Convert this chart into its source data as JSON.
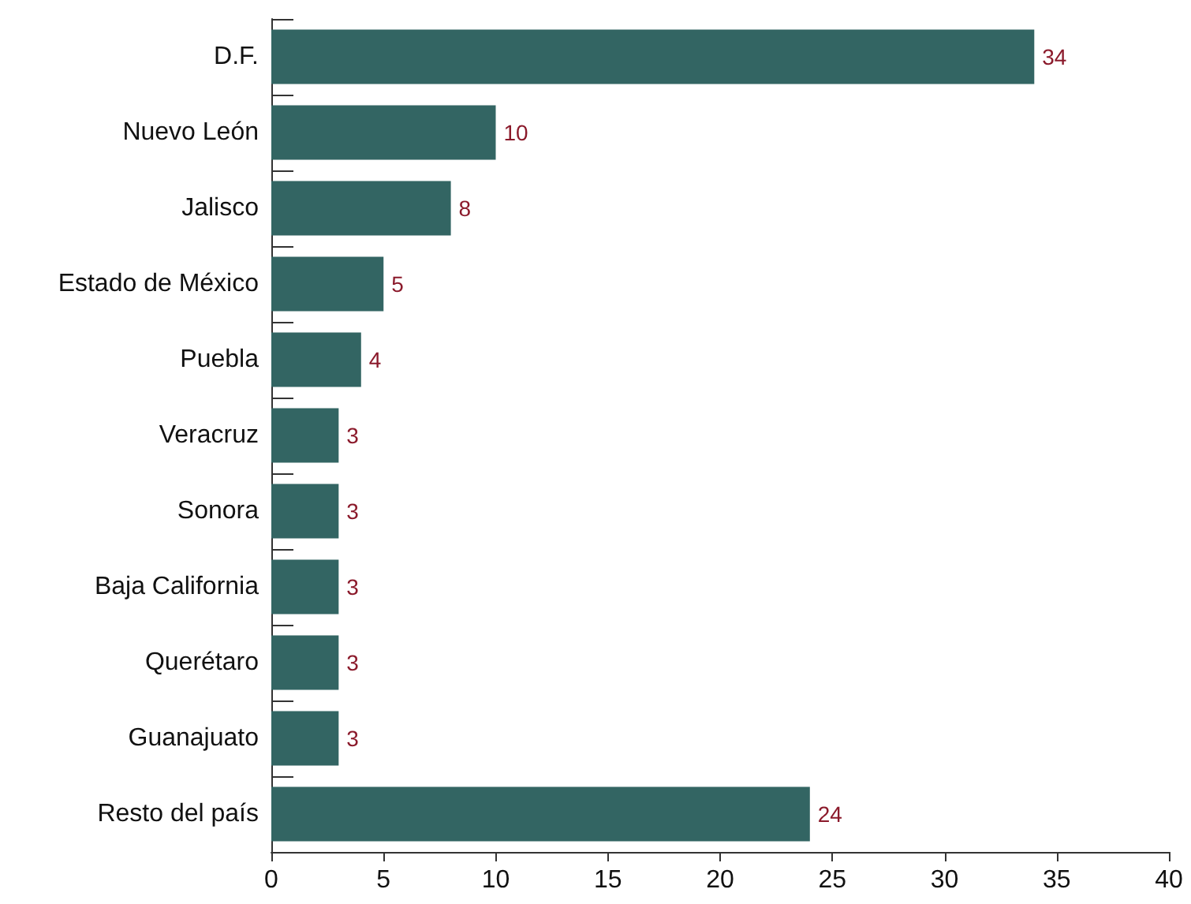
{
  "chart_data": {
    "type": "bar",
    "orientation": "horizontal",
    "categories": [
      "D.F.",
      "Nuevo León",
      "Jalisco",
      "Estado de México",
      "Puebla",
      "Veracruz",
      "Sonora",
      "Baja California",
      "Querétaro",
      "Guanajuato",
      "Resto del país"
    ],
    "values": [
      34,
      10,
      8,
      5,
      4,
      3,
      3,
      3,
      3,
      3,
      24
    ],
    "color": "#336563",
    "xlim": [
      0,
      40
    ],
    "xticks": [
      0,
      5,
      10,
      15,
      20,
      25,
      30,
      35,
      40
    ],
    "grid": false,
    "data_labels": true
  }
}
